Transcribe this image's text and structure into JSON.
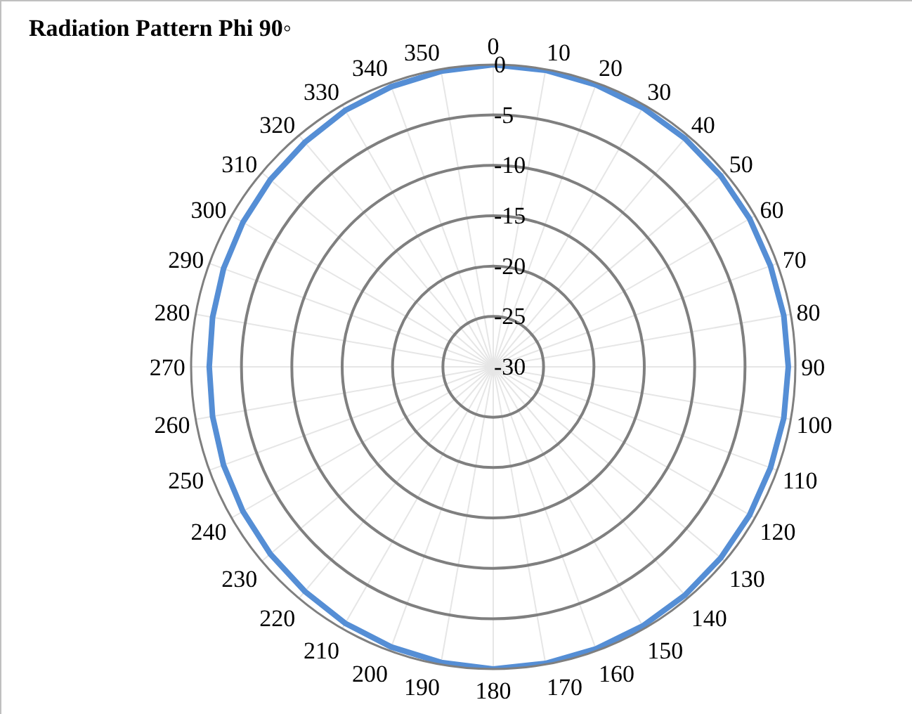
{
  "chart_data": {
    "type": "radar",
    "title": "Radiation Pattern Phi 90◦",
    "categories": [
      "0",
      "10",
      "20",
      "30",
      "40",
      "50",
      "60",
      "70",
      "80",
      "90",
      "100",
      "110",
      "120",
      "130",
      "140",
      "150",
      "160",
      "170",
      "180",
      "190",
      "200",
      "210",
      "220",
      "230",
      "240",
      "250",
      "260",
      "270",
      "280",
      "290",
      "300",
      "310",
      "320",
      "330",
      "340",
      "350"
    ],
    "series": [
      {
        "color": "#558ed5",
        "values": [
          0,
          -0.1,
          -0.2,
          -0.3,
          -0.4,
          -0.5,
          -0.6,
          -0.7,
          -0.7,
          -0.7,
          -0.7,
          -0.7,
          -0.6,
          -0.5,
          -0.4,
          -0.3,
          -0.2,
          -0.1,
          0,
          -0.2,
          -0.4,
          -0.6,
          -0.9,
          -1.1,
          -1.3,
          -1.5,
          -1.7,
          -1.8,
          -1.7,
          -1.5,
          -1.3,
          -1.1,
          -0.9,
          -0.6,
          -0.4,
          -0.2
        ]
      }
    ],
    "ylim": [
      -30,
      0
    ],
    "yticks": [
      -30,
      -25,
      -20,
      -15,
      -10,
      -5,
      0
    ],
    "grid": true,
    "marker": "none",
    "line_style": "solid"
  }
}
